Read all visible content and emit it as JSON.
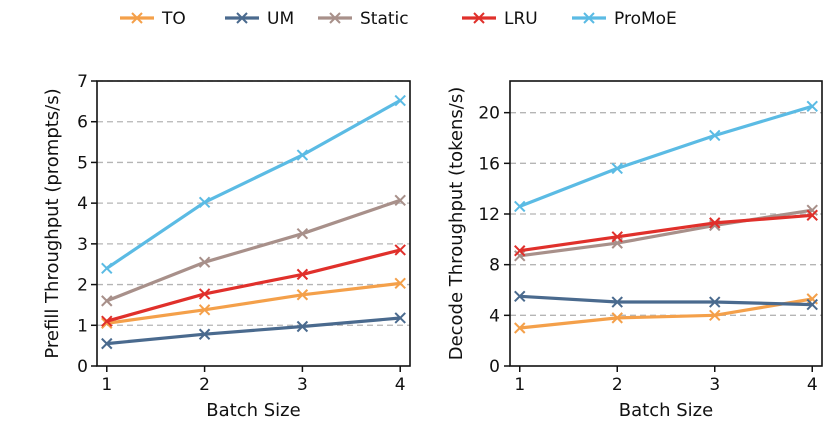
{
  "chart_data": [
    {
      "type": "line",
      "xlabel": "Batch Size",
      "ylabel": "Prefill Throughput (prompts/s)",
      "x": [
        1,
        2,
        3,
        4
      ],
      "xticks": [
        "1",
        "2",
        "3",
        "4"
      ],
      "ylim": [
        0,
        7
      ],
      "yticks": [
        0,
        1,
        2,
        3,
        4,
        5,
        6,
        7
      ],
      "grid": "horizontal dashed",
      "series": [
        {
          "name": "TO",
          "color": "#F4A04A",
          "values": [
            1.05,
            1.38,
            1.75,
            2.03
          ]
        },
        {
          "name": "UM",
          "color": "#4A6A8E",
          "values": [
            0.55,
            0.78,
            0.97,
            1.18
          ]
        },
        {
          "name": "Static",
          "color": "#A8908A",
          "values": [
            1.6,
            2.55,
            3.25,
            4.07
          ]
        },
        {
          "name": "LRU",
          "color": "#E0302B",
          "values": [
            1.1,
            1.77,
            2.25,
            2.85
          ]
        },
        {
          "name": "ProMoE",
          "color": "#5BBBE4",
          "values": [
            2.4,
            4.02,
            5.18,
            6.52
          ]
        }
      ]
    },
    {
      "type": "line",
      "xlabel": "Batch Size",
      "ylabel": "Decode Throughput (tokens/s)",
      "x": [
        1,
        2,
        3,
        4
      ],
      "xticks": [
        "1",
        "2",
        "3",
        "4"
      ],
      "ylim": [
        0,
        22.5
      ],
      "yticks": [
        0,
        4,
        8,
        12,
        16,
        20
      ],
      "grid": "horizontal dashed",
      "series": [
        {
          "name": "TO",
          "color": "#F4A04A",
          "values": [
            3.0,
            3.8,
            4.0,
            5.3
          ]
        },
        {
          "name": "UM",
          "color": "#4A6A8E",
          "values": [
            5.5,
            5.05,
            5.05,
            4.85
          ]
        },
        {
          "name": "Static",
          "color": "#A8908A",
          "values": [
            8.7,
            9.7,
            11.1,
            12.3
          ]
        },
        {
          "name": "LRU",
          "color": "#E0302B",
          "values": [
            9.1,
            10.2,
            11.3,
            11.9
          ]
        },
        {
          "name": "ProMoE",
          "color": "#5BBBE4",
          "values": [
            12.6,
            15.6,
            18.2,
            20.5
          ]
        }
      ]
    }
  ],
  "legend": {
    "position": "top-center",
    "items": [
      {
        "label": "TO",
        "color": "#F4A04A"
      },
      {
        "label": "UM",
        "color": "#4A6A8E"
      },
      {
        "label": "Static",
        "color": "#A8908A"
      },
      {
        "label": "LRU",
        "color": "#E0302B"
      },
      {
        "label": "ProMoE",
        "color": "#5BBBE4"
      }
    ]
  }
}
